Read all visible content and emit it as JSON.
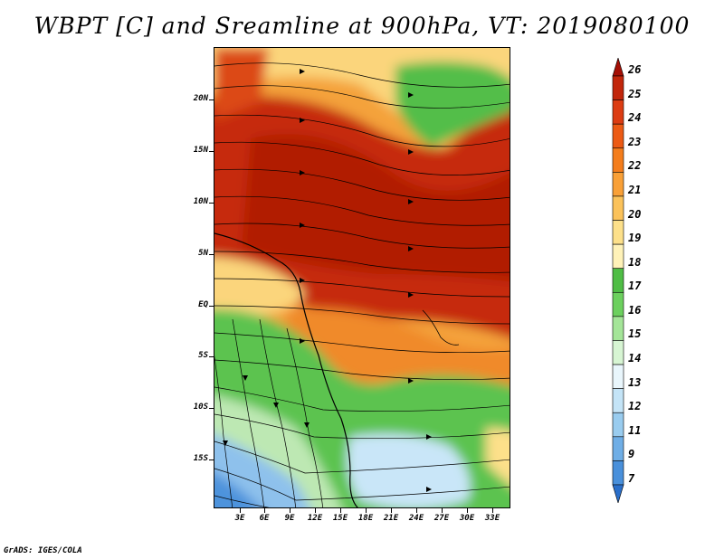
{
  "title": "WBPT [C] and Sreamline at 900hPa, VT: 2019080100",
  "credit": "GrADS: IGES/COLA",
  "map": {
    "lat_ticks": [
      "20N",
      "15N",
      "10N",
      "5N",
      "EQ",
      "5S",
      "10S",
      "15S"
    ],
    "lon_ticks": [
      "3E",
      "6E",
      "9E",
      "12E",
      "15E",
      "18E",
      "21E",
      "24E",
      "27E",
      "30E",
      "33E"
    ]
  },
  "colorbar": {
    "labels": [
      "26",
      "25",
      "24",
      "23",
      "22",
      "21",
      "20",
      "19",
      "18",
      "17",
      "16",
      "15",
      "14",
      "13",
      "12",
      "11",
      "9",
      "7"
    ],
    "colors": [
      "#a50f05",
      "#c2260b",
      "#dc3c12",
      "#ec5a14",
      "#f47d1c",
      "#f9a037",
      "#fbc25a",
      "#fde08a",
      "#fff2b8",
      "#4fbd45",
      "#6cd05e",
      "#a4e598",
      "#d7f5d3",
      "#e9f6fc",
      "#c4e4f7",
      "#99ccef",
      "#6faee6",
      "#4990db",
      "#2a6fca"
    ]
  }
}
